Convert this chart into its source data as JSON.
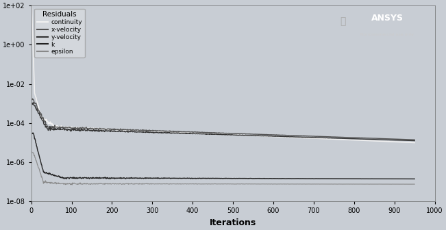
{
  "title": "",
  "xlabel": "Iterations",
  "ylabel": "",
  "xlim": [
    0,
    1000
  ],
  "x_ticks": [
    0,
    100,
    200,
    300,
    400,
    500,
    600,
    700,
    800,
    900,
    1000
  ],
  "legend_title": "Residuals",
  "legend_entries": [
    "continuity",
    "x-velocity",
    "y-velocity",
    "k",
    "epsilon"
  ],
  "bg_color": "#c8cdd4",
  "plot_bg_color": "#c8cdd4",
  "n_points": 950,
  "series": {
    "continuity": {
      "color": "#f0f0f0",
      "linewidth": 1.2
    },
    "x_velocity": {
      "color": "#555555",
      "linewidth": 1.0
    },
    "y_velocity": {
      "color": "#333333",
      "linewidth": 1.0
    },
    "k": {
      "color": "#222222",
      "linewidth": 1.0
    },
    "epsilon": {
      "color": "#888888",
      "linewidth": 0.8
    }
  }
}
